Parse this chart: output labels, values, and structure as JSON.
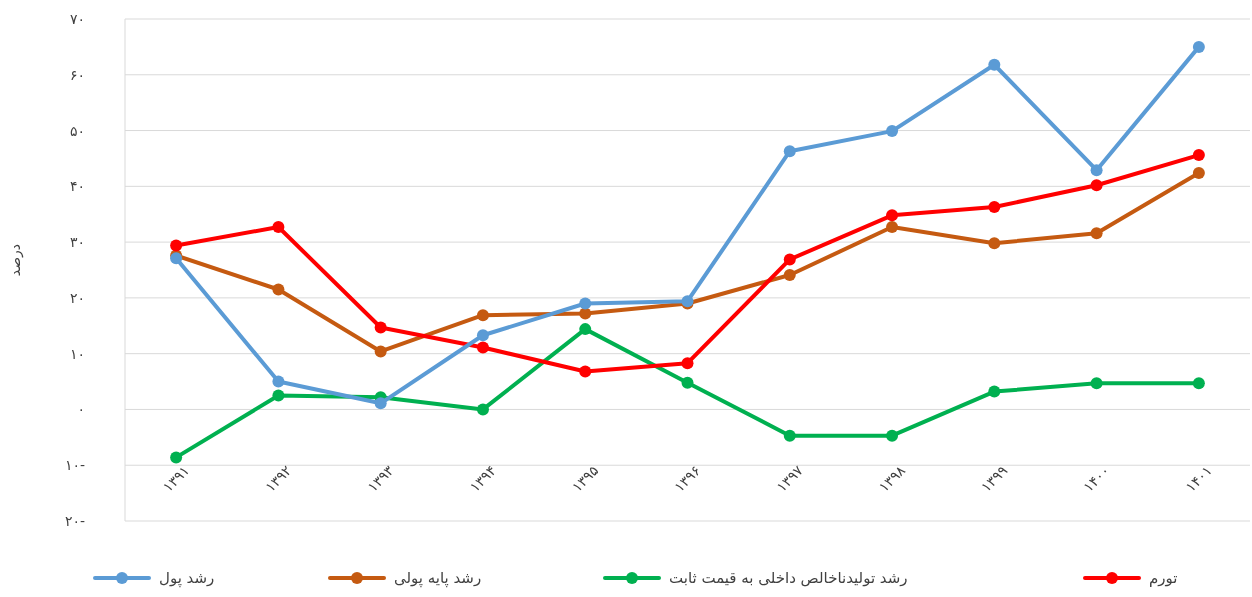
{
  "chart_data": {
    "type": "line",
    "ylabel": "درصد",
    "categories": [
      "۱۳۹۱",
      "۱۳۹۲",
      "۱۳۹۳",
      "۱۳۹۴",
      "۱۳۹۵",
      "۱۳۹۶",
      "۱۳۹۷",
      "۱۳۹۸",
      "۱۳۹۹",
      "۱۴۰۰",
      "۱۴۰۱"
    ],
    "series": [
      {
        "name": "رشد پول",
        "color": "#5b9bd5",
        "values": [
          27.1,
          5.0,
          1.1,
          13.3,
          19.0,
          19.4,
          46.3,
          49.9,
          61.8,
          42.9,
          65.0
        ]
      },
      {
        "name": "رشد پایه پولی",
        "color": "#c55a11",
        "values": [
          27.6,
          21.5,
          10.4,
          16.9,
          17.2,
          19.0,
          24.1,
          32.7,
          29.8,
          31.6,
          42.4
        ]
      },
      {
        "name": "رشد تولیدناخالص داخلی به قیمت ثابت",
        "color": "#00b050",
        "values": [
          -8.6,
          2.5,
          2.2,
          0,
          14.4,
          4.8,
          -4.7,
          -4.7,
          3.2,
          4.7,
          4.7
        ]
      },
      {
        "name": "تورم",
        "color": "#ff0000",
        "values": [
          29.4,
          32.7,
          14.7,
          11.1,
          6.8,
          8.3,
          26.9,
          34.8,
          36.3,
          40.2,
          45.6
        ]
      }
    ],
    "ylim": [
      -20,
      70
    ],
    "yticks": [
      {
        "value": -20,
        "label": "۲۰-"
      },
      {
        "value": -10,
        "label": "۱۰-"
      },
      {
        "value": 0,
        "label": "۰"
      },
      {
        "value": 10,
        "label": "۱۰"
      },
      {
        "value": 20,
        "label": "۲۰"
      },
      {
        "value": 30,
        "label": "۳۰"
      },
      {
        "value": 40,
        "label": "۴۰"
      },
      {
        "value": 50,
        "label": "۵۰"
      },
      {
        "value": 60,
        "label": "۶۰"
      },
      {
        "value": 70,
        "label": "۷۰"
      }
    ],
    "grid": "y",
    "legend": "bottom",
    "marker": "circle",
    "line_style": "solid"
  }
}
